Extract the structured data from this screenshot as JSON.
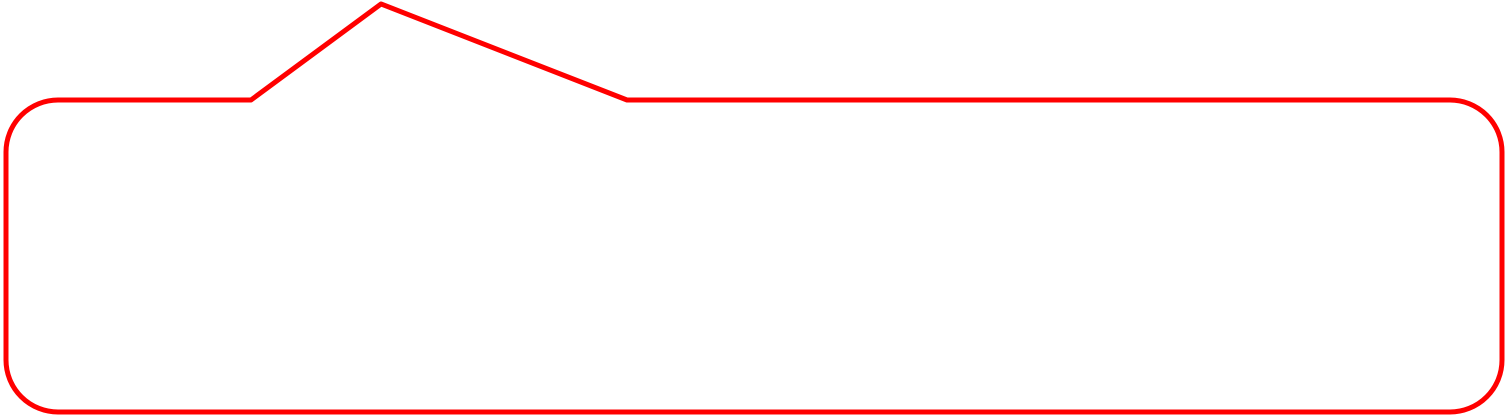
{
  "callout": {
    "stroke_color": "#ff0000",
    "fill_color": "#ffffff",
    "text": ""
  }
}
